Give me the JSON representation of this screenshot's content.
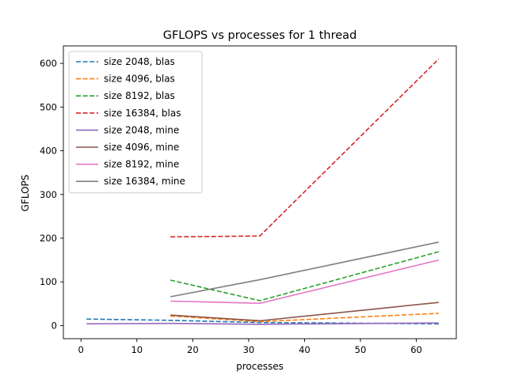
{
  "chart_data": {
    "type": "line",
    "title": "GFLOPS vs processes for 1 thread",
    "xlabel": "processes",
    "ylabel": "GFLOPS",
    "xlim": [
      -3.15,
      67.15
    ],
    "ylim": [
      -30,
      640
    ],
    "xticks": [
      0,
      10,
      20,
      30,
      40,
      50,
      60
    ],
    "yticks": [
      0,
      100,
      200,
      300,
      400,
      500,
      600
    ],
    "grid": false,
    "legend_position": "top-left",
    "series": [
      {
        "name": "size 2048, blas",
        "color": "#1f77b4",
        "style": "dashed",
        "x": [
          1,
          16,
          32,
          64
        ],
        "y": [
          15,
          12,
          7,
          4
        ]
      },
      {
        "name": "size 4096, blas",
        "color": "#ff7f0e",
        "style": "dashed",
        "x": [
          16,
          32,
          64
        ],
        "y": [
          22,
          9,
          28
        ]
      },
      {
        "name": "size 8192, blas",
        "color": "#2ca02c",
        "style": "dashed",
        "x": [
          16,
          32,
          64
        ],
        "y": [
          104,
          57,
          169
        ]
      },
      {
        "name": "size 16384, blas",
        "color": "#d62728",
        "style": "dashed",
        "x": [
          16,
          32,
          64
        ],
        "y": [
          203,
          205,
          610
        ]
      },
      {
        "name": "size 2048, mine",
        "color": "#9467bd",
        "style": "solid",
        "x": [
          1,
          16,
          32,
          64
        ],
        "y": [
          4,
          5,
          3,
          6
        ]
      },
      {
        "name": "size 4096, mine",
        "color": "#8c564b",
        "style": "solid",
        "x": [
          16,
          32,
          64
        ],
        "y": [
          24,
          11,
          53
        ]
      },
      {
        "name": "size 8192, mine",
        "color": "#e377c2",
        "style": "solid",
        "x": [
          16,
          32,
          64
        ],
        "y": [
          56,
          51,
          150
        ]
      },
      {
        "name": "size 16384, mine",
        "color": "#7f7f7f",
        "style": "solid",
        "x": [
          16,
          32,
          64
        ],
        "y": [
          66,
          105,
          191
        ]
      }
    ]
  }
}
